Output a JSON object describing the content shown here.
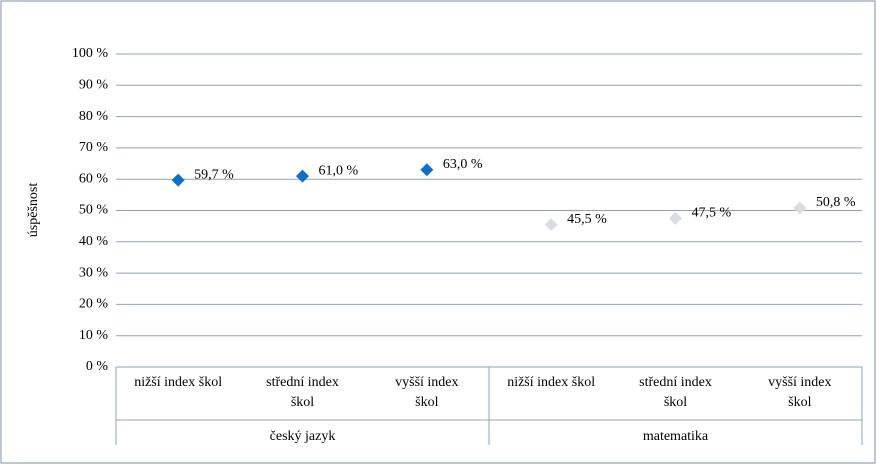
{
  "chart_data": {
    "type": "line",
    "markers_only": true,
    "y_label": "úspěšnost",
    "categories": [
      "nižší index škol",
      "střední index škol",
      "vyšší index škol",
      "nižší index škol",
      "střední index škol",
      "vyšší index škol"
    ],
    "groups": [
      {
        "label": "český jazyk",
        "span": 3
      },
      {
        "label": "matematika",
        "span": 3
      }
    ],
    "series": [
      {
        "color": "#0f6fc6",
        "values": [
          59.7,
          61.0,
          63.0,
          null,
          null,
          null
        ],
        "value_labels": [
          "59,7 %",
          "61,0 %",
          "63,0 %",
          null,
          null,
          null
        ]
      },
      {
        "color": "#d9dde3",
        "values": [
          null,
          null,
          null,
          45.5,
          47.5,
          50.8
        ],
        "value_labels": [
          null,
          null,
          null,
          "45,5 %",
          "47,5 %",
          "50,8 %"
        ]
      }
    ],
    "ylim": [
      0,
      100
    ],
    "yticks": [
      {
        "value": 0,
        "label": "0 %"
      },
      {
        "value": 10,
        "label": "10 %"
      },
      {
        "value": 20,
        "label": "20 %"
      },
      {
        "value": 30,
        "label": "30 %"
      },
      {
        "value": 40,
        "label": "40 %"
      },
      {
        "value": 50,
        "label": "50 %"
      },
      {
        "value": 60,
        "label": "60 %"
      },
      {
        "value": 70,
        "label": "70 %"
      },
      {
        "value": 80,
        "label": "80 %"
      },
      {
        "value": 90,
        "label": "90 %"
      },
      {
        "value": 100,
        "label": "100 %"
      }
    ],
    "grid": true
  }
}
